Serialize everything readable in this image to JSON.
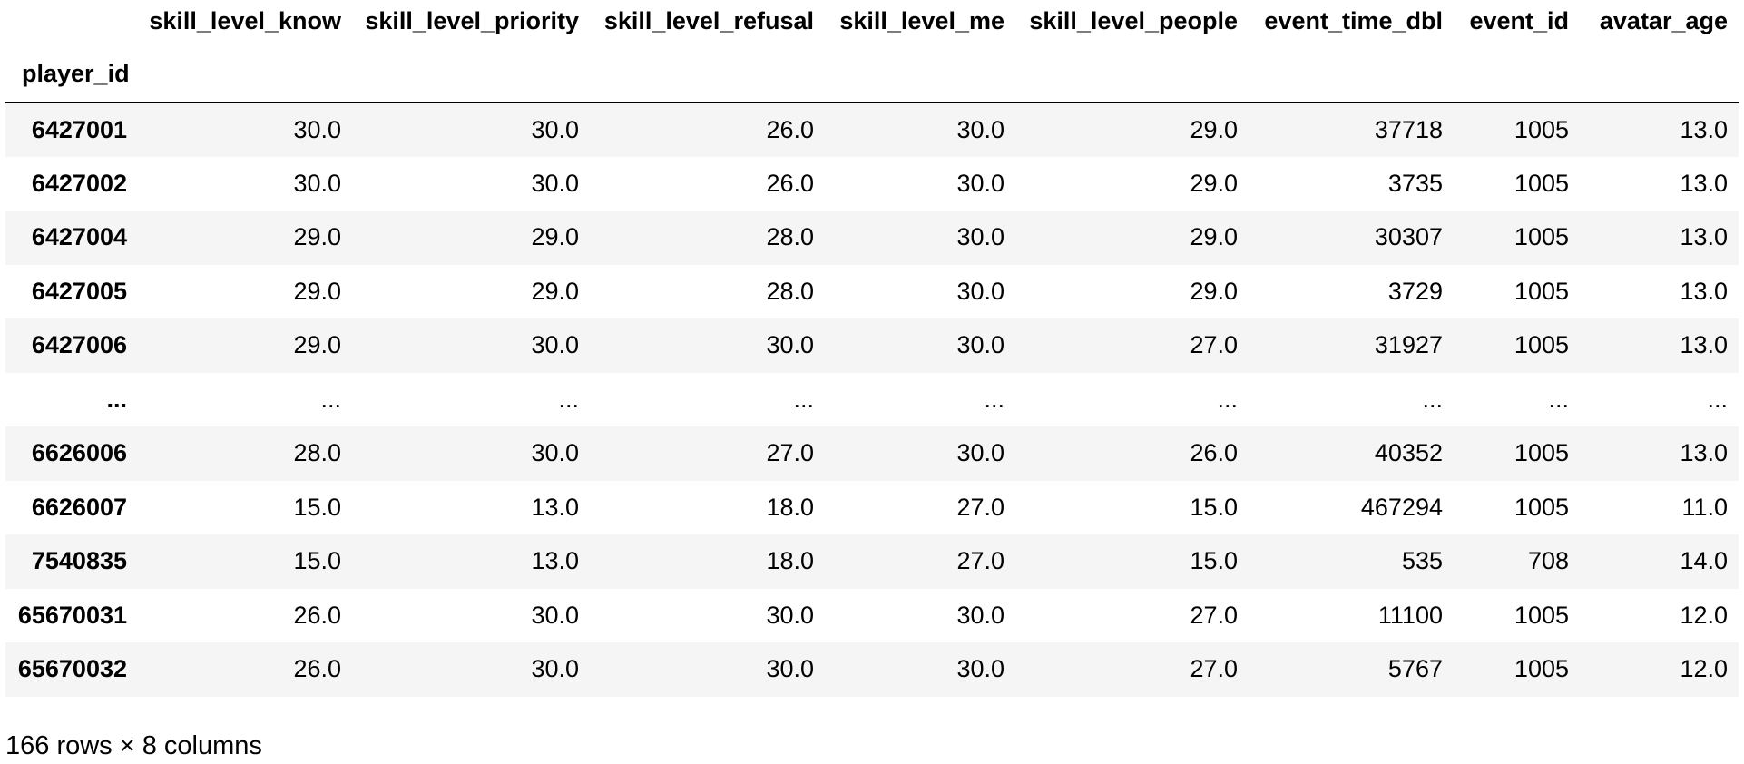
{
  "table": {
    "index_name": "player_id",
    "columns": [
      "skill_level_know",
      "skill_level_priority",
      "skill_level_refusal",
      "skill_level_me",
      "skill_level_people",
      "event_time_dbl",
      "event_id",
      "avatar_age"
    ],
    "rows": [
      {
        "index": "6427001",
        "cells": [
          "30.0",
          "30.0",
          "26.0",
          "30.0",
          "29.0",
          "37718",
          "1005",
          "13.0"
        ]
      },
      {
        "index": "6427002",
        "cells": [
          "30.0",
          "30.0",
          "26.0",
          "30.0",
          "29.0",
          "3735",
          "1005",
          "13.0"
        ]
      },
      {
        "index": "6427004",
        "cells": [
          "29.0",
          "29.0",
          "28.0",
          "30.0",
          "29.0",
          "30307",
          "1005",
          "13.0"
        ]
      },
      {
        "index": "6427005",
        "cells": [
          "29.0",
          "29.0",
          "28.0",
          "30.0",
          "29.0",
          "3729",
          "1005",
          "13.0"
        ]
      },
      {
        "index": "6427006",
        "cells": [
          "29.0",
          "30.0",
          "30.0",
          "30.0",
          "27.0",
          "31927",
          "1005",
          "13.0"
        ]
      },
      {
        "index": "...",
        "cells": [
          "...",
          "...",
          "...",
          "...",
          "...",
          "...",
          "...",
          "..."
        ]
      },
      {
        "index": "6626006",
        "cells": [
          "28.0",
          "30.0",
          "27.0",
          "30.0",
          "26.0",
          "40352",
          "1005",
          "13.0"
        ]
      },
      {
        "index": "6626007",
        "cells": [
          "15.0",
          "13.0",
          "18.0",
          "27.0",
          "15.0",
          "467294",
          "1005",
          "11.0"
        ]
      },
      {
        "index": "7540835",
        "cells": [
          "15.0",
          "13.0",
          "18.0",
          "27.0",
          "15.0",
          "535",
          "708",
          "14.0"
        ]
      },
      {
        "index": "65670031",
        "cells": [
          "26.0",
          "30.0",
          "30.0",
          "30.0",
          "27.0",
          "11100",
          "1005",
          "12.0"
        ]
      },
      {
        "index": "65670032",
        "cells": [
          "26.0",
          "30.0",
          "30.0",
          "30.0",
          "27.0",
          "5767",
          "1005",
          "12.0"
        ]
      }
    ]
  },
  "caption": "166 rows × 8 columns",
  "colors": {
    "stripe": "#f5f5f5",
    "header_rule": "#000000",
    "text": "#000000"
  }
}
